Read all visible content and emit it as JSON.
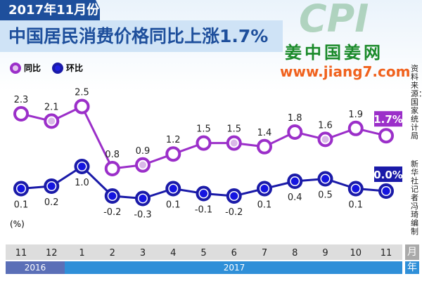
{
  "header": {
    "period": "2017年11月份",
    "title": "中国居民消费价格同比上涨1.7%"
  },
  "legend": {
    "yoy": "同比",
    "mom": "环比"
  },
  "watermark": {
    "logo": "CPI",
    "cn": "姜中国姜网",
    "url": "www.jiang7.com"
  },
  "source": "资料来源：国家统计局",
  "credit": "新华社记者 冯琦 编制",
  "unit": "(%)",
  "month_unit": "月",
  "year_unit": "年",
  "years": [
    "2016",
    "2017"
  ],
  "colors": {
    "yoy": "#9b2fc9",
    "mom": "#1a1aa8",
    "title": "#1e4f9c"
  },
  "chart_data": {
    "type": "line",
    "categories": [
      "11",
      "12",
      "1",
      "2",
      "3",
      "4",
      "5",
      "6",
      "7",
      "8",
      "9",
      "10",
      "11"
    ],
    "series": [
      {
        "name": "同比",
        "values": [
          2.3,
          2.1,
          2.5,
          0.8,
          0.9,
          1.2,
          1.5,
          1.5,
          1.4,
          1.8,
          1.6,
          1.9,
          1.7
        ],
        "callout": "1.7%"
      },
      {
        "name": "环比",
        "values": [
          0.1,
          0.2,
          1.0,
          -0.2,
          -0.3,
          0.1,
          -0.1,
          -0.2,
          0.1,
          0.4,
          0.5,
          0.1,
          0.0
        ],
        "callout": "0.0%"
      }
    ],
    "ylabel": "(%)"
  }
}
